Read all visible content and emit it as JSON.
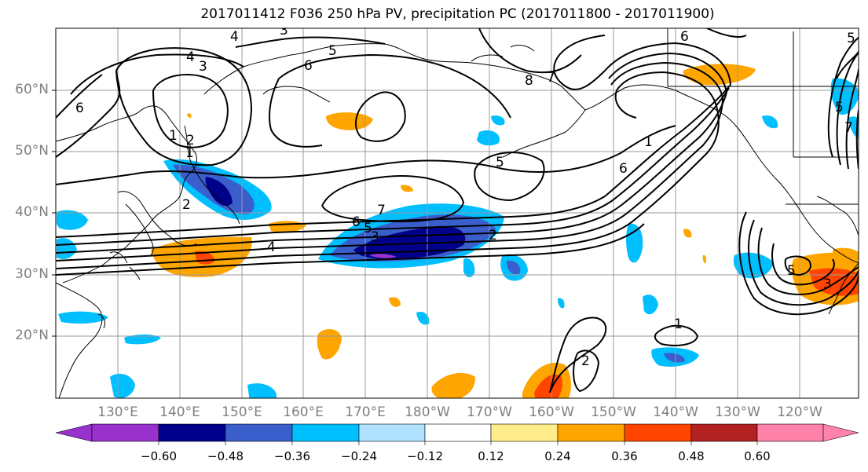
{
  "title": "2017011412 F036 250 hPa PV, precipitation PC (2017011800 - 2017011900)",
  "lat_labels": [
    "60°N",
    "50°N",
    "40°N",
    "30°N",
    "20°N"
  ],
  "lon_labels": [
    "130°E",
    "140°E",
    "150°E",
    "160°E",
    "170°E",
    "180°W",
    "170°W",
    "160°W",
    "150°W",
    "140°W",
    "130°W",
    "120°W"
  ],
  "colorbar": {
    "labels": [
      "−0.60",
      "−0.48",
      "−0.36",
      "−0.24",
      "−0.12",
      "0.12",
      "0.24",
      "0.36",
      "0.48",
      "0.60"
    ],
    "colors": [
      "#9932cc",
      "#00008b",
      "#3a5fcd",
      "#00bfff",
      "#b0e2ff",
      "#ffffff",
      "#ffec8b",
      "#ffa500",
      "#ff4500",
      "#b22222",
      "#ff82ab"
    ]
  },
  "contour_labels": [
    "4",
    "3",
    "5",
    "6",
    "4",
    "3",
    "6",
    "1",
    "2",
    "1",
    "2",
    "6",
    "7",
    "5",
    "3",
    "4",
    "2",
    "5",
    "8",
    "7",
    "1",
    "6",
    "6",
    "5",
    "5",
    "7",
    "5",
    "3",
    "2",
    "1"
  ],
  "colors": {
    "contour": "#000000",
    "grid": "#9a9a9a",
    "coast": "#000000",
    "axis_label": "#808080"
  }
}
